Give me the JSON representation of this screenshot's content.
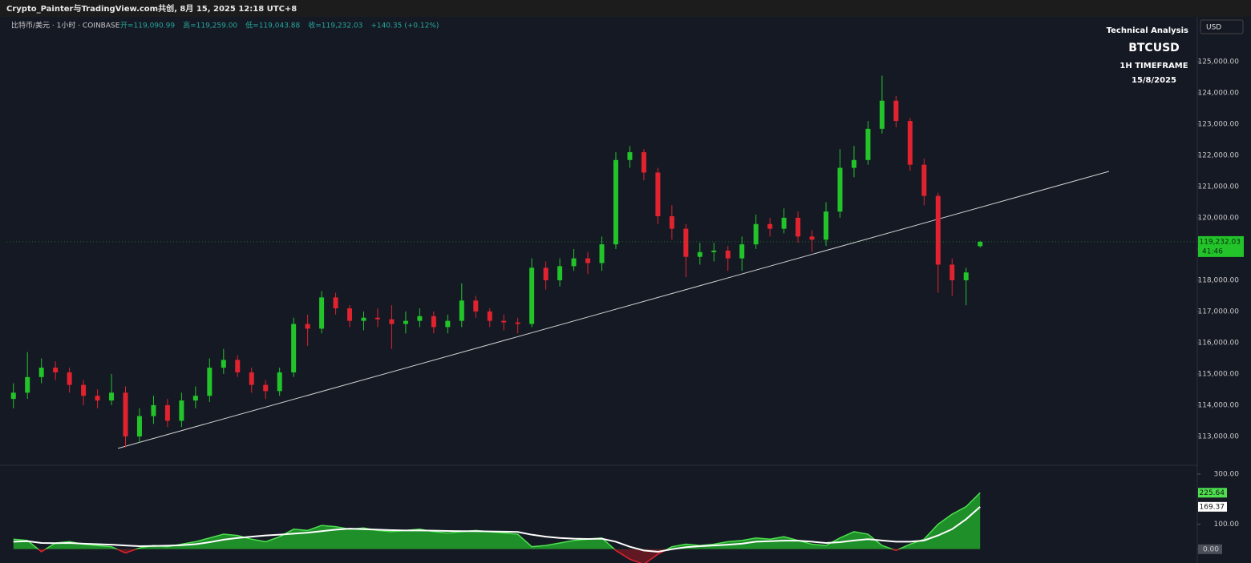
{
  "title_bar": "Crypto_Painter与TradingView.com共创, 8月 15, 2025 12:18 UTC+8",
  "chart_data": [
    {
      "type": "candlestick",
      "symbol_line": "比特币/美元 · 1小时 · COINBASE",
      "ohlc_text": [
        "开=119,090.99",
        "高=119,259.00",
        "低=119,043.88",
        "收=119,232.03",
        "+140.35 (+0.12%)"
      ],
      "overlay": [
        "Technical Analysis",
        "BTCUSD",
        "1H TIMEFRAME",
        "15/8/2025"
      ],
      "currency": "USD",
      "last_price_label": "119,232.03",
      "countdown": "41:46",
      "up_color": "#22c42a",
      "down_color": "#e0232e",
      "xlim": [
        -0.5,
        84.5
      ],
      "ylim": [
        112100,
        126410
      ],
      "yticks": [
        {
          "value": 113000,
          "label": "113,000.00"
        },
        {
          "value": 114000,
          "label": "114,000.00"
        },
        {
          "value": 115000,
          "label": "115,000.00"
        },
        {
          "value": 116000,
          "label": "116,000.00"
        },
        {
          "value": 117000,
          "label": "117,000.00"
        },
        {
          "value": 118000,
          "label": "118,000.00"
        },
        {
          "value": 119000,
          "label": "119,000.00"
        },
        {
          "value": 120000,
          "label": "120,000.00"
        },
        {
          "value": 121000,
          "label": "121,000.00"
        },
        {
          "value": 122000,
          "label": "122,000.00"
        },
        {
          "value": 123000,
          "label": "123,000.00"
        },
        {
          "value": 124000,
          "label": "124,000.00"
        },
        {
          "value": 125000,
          "label": "125,000.00"
        }
      ],
      "open": [
        114200,
        114400,
        114900,
        115200,
        115050,
        114650,
        114300,
        114150,
        114400,
        113000,
        113650,
        114000,
        113500,
        114150,
        114300,
        115200,
        115450,
        115050,
        114650,
        114450,
        115050,
        116600,
        116450,
        117450,
        117100,
        116700,
        116800,
        116750,
        116600,
        116700,
        116850,
        116500,
        116700,
        117350,
        117000,
        116700,
        116650,
        116600,
        118400,
        118000,
        118450,
        118700,
        118550,
        119150,
        121850,
        122100,
        121450,
        120050,
        119650,
        118750,
        118900,
        118950,
        118700,
        119150,
        119800,
        119650,
        120000,
        119400,
        119300,
        120200,
        121600,
        121850,
        122850,
        123750,
        123100,
        121700,
        120700,
        118500,
        118000,
        119090.99
      ],
      "high": [
        114700,
        115700,
        115500,
        115400,
        115200,
        114800,
        114500,
        115000,
        114600,
        113900,
        114300,
        114200,
        114400,
        114600,
        115500,
        115800,
        115600,
        115200,
        114800,
        115200,
        116800,
        116900,
        117650,
        117600,
        117200,
        117000,
        117100,
        117200,
        117000,
        117100,
        117000,
        116900,
        117900,
        117500,
        117100,
        116900,
        116800,
        118700,
        118600,
        118700,
        119000,
        118900,
        119400,
        122100,
        122300,
        122200,
        121600,
        120400,
        119800,
        119200,
        119200,
        119100,
        119400,
        120100,
        120000,
        120300,
        120200,
        119600,
        120500,
        122200,
        122300,
        123100,
        124550,
        123900,
        123200,
        121900,
        120800,
        118700,
        118400,
        119259
      ],
      "low": [
        113900,
        114200,
        114700,
        114800,
        114400,
        114000,
        113900,
        114000,
        112650,
        112800,
        113400,
        113300,
        113300,
        113900,
        114100,
        115000,
        114900,
        114400,
        114200,
        114300,
        114900,
        115900,
        116300,
        116900,
        116500,
        116400,
        116500,
        115800,
        116300,
        116500,
        116300,
        116300,
        116500,
        116800,
        116500,
        116400,
        116300,
        116500,
        117700,
        117800,
        118300,
        118200,
        118300,
        119000,
        121600,
        121200,
        119800,
        119300,
        118100,
        118500,
        118600,
        118300,
        118300,
        119000,
        119400,
        119500,
        119200,
        118900,
        119100,
        120000,
        121300,
        121700,
        122700,
        122900,
        121500,
        120400,
        117600,
        117500,
        117200,
        119043.88
      ],
      "close": [
        114400,
        114900,
        115200,
        115050,
        114650,
        114300,
        114150,
        114400,
        113000,
        113650,
        114000,
        113500,
        114150,
        114300,
        115200,
        115450,
        115050,
        114650,
        114450,
        115050,
        116600,
        116450,
        117450,
        117100,
        116700,
        116800,
        116750,
        116600,
        116700,
        116850,
        116500,
        116700,
        117350,
        117000,
        116700,
        116650,
        116600,
        118400,
        118000,
        118450,
        118700,
        118550,
        119150,
        121850,
        122100,
        121450,
        120050,
        119650,
        118750,
        118900,
        118950,
        118700,
        119150,
        119800,
        119650,
        120000,
        119400,
        119300,
        120200,
        121600,
        121850,
        122850,
        123750,
        123100,
        121700,
        120700,
        118500,
        118000,
        118250,
        119232.03
      ],
      "trendline": {
        "x": [
          7.46,
          78.2
        ],
        "y": [
          112615,
          121487
        ],
        "color": "#d0d0d0"
      }
    },
    {
      "type": "area_oscillator",
      "xlim": [
        -0.5,
        84.5
      ],
      "ylim": [
        -55,
        332
      ],
      "yticks": [
        {
          "value": 300,
          "label": "300.00"
        },
        {
          "value": 100,
          "label": "100.00"
        },
        {
          "value": 0,
          "label": "0.00"
        }
      ],
      "positive_color": "#1f8f2a",
      "negative_color": "#b0181f",
      "series": [
        {
          "values": [
            40,
            35,
            -10,
            25,
            30,
            20,
            15,
            10,
            -15,
            5,
            15,
            10,
            20,
            30,
            45,
            60,
            55,
            40,
            30,
            50,
            80,
            75,
            95,
            90,
            80,
            85,
            75,
            70,
            75,
            80,
            70,
            65,
            70,
            75,
            70,
            65,
            60,
            10,
            15,
            25,
            35,
            40,
            45,
            -5,
            -40,
            -60,
            -20,
            10,
            20,
            15,
            20,
            30,
            35,
            45,
            40,
            50,
            35,
            20,
            15,
            45,
            70,
            60,
            15,
            -5,
            20,
            40,
            100,
            140,
            170,
            225.64
          ],
          "value_label": "225.64",
          "color": "#4ee04e"
        },
        {
          "values": [
            30,
            32,
            25,
            24,
            25,
            22,
            20,
            18,
            15,
            12,
            13,
            14,
            16,
            20,
            28,
            38,
            45,
            50,
            55,
            58,
            62,
            66,
            72,
            78,
            82,
            80,
            78,
            76,
            75,
            75,
            74,
            73,
            72,
            72,
            71,
            70,
            69,
            58,
            50,
            45,
            42,
            41,
            42,
            30,
            10,
            -5,
            -10,
            0,
            8,
            12,
            15,
            18,
            22,
            30,
            32,
            34,
            34,
            30,
            25,
            28,
            35,
            40,
            35,
            30,
            30,
            35,
            55,
            80,
            120,
            169.37
          ],
          "value_label": "169.37",
          "color": "#ffffff"
        }
      ]
    }
  ]
}
